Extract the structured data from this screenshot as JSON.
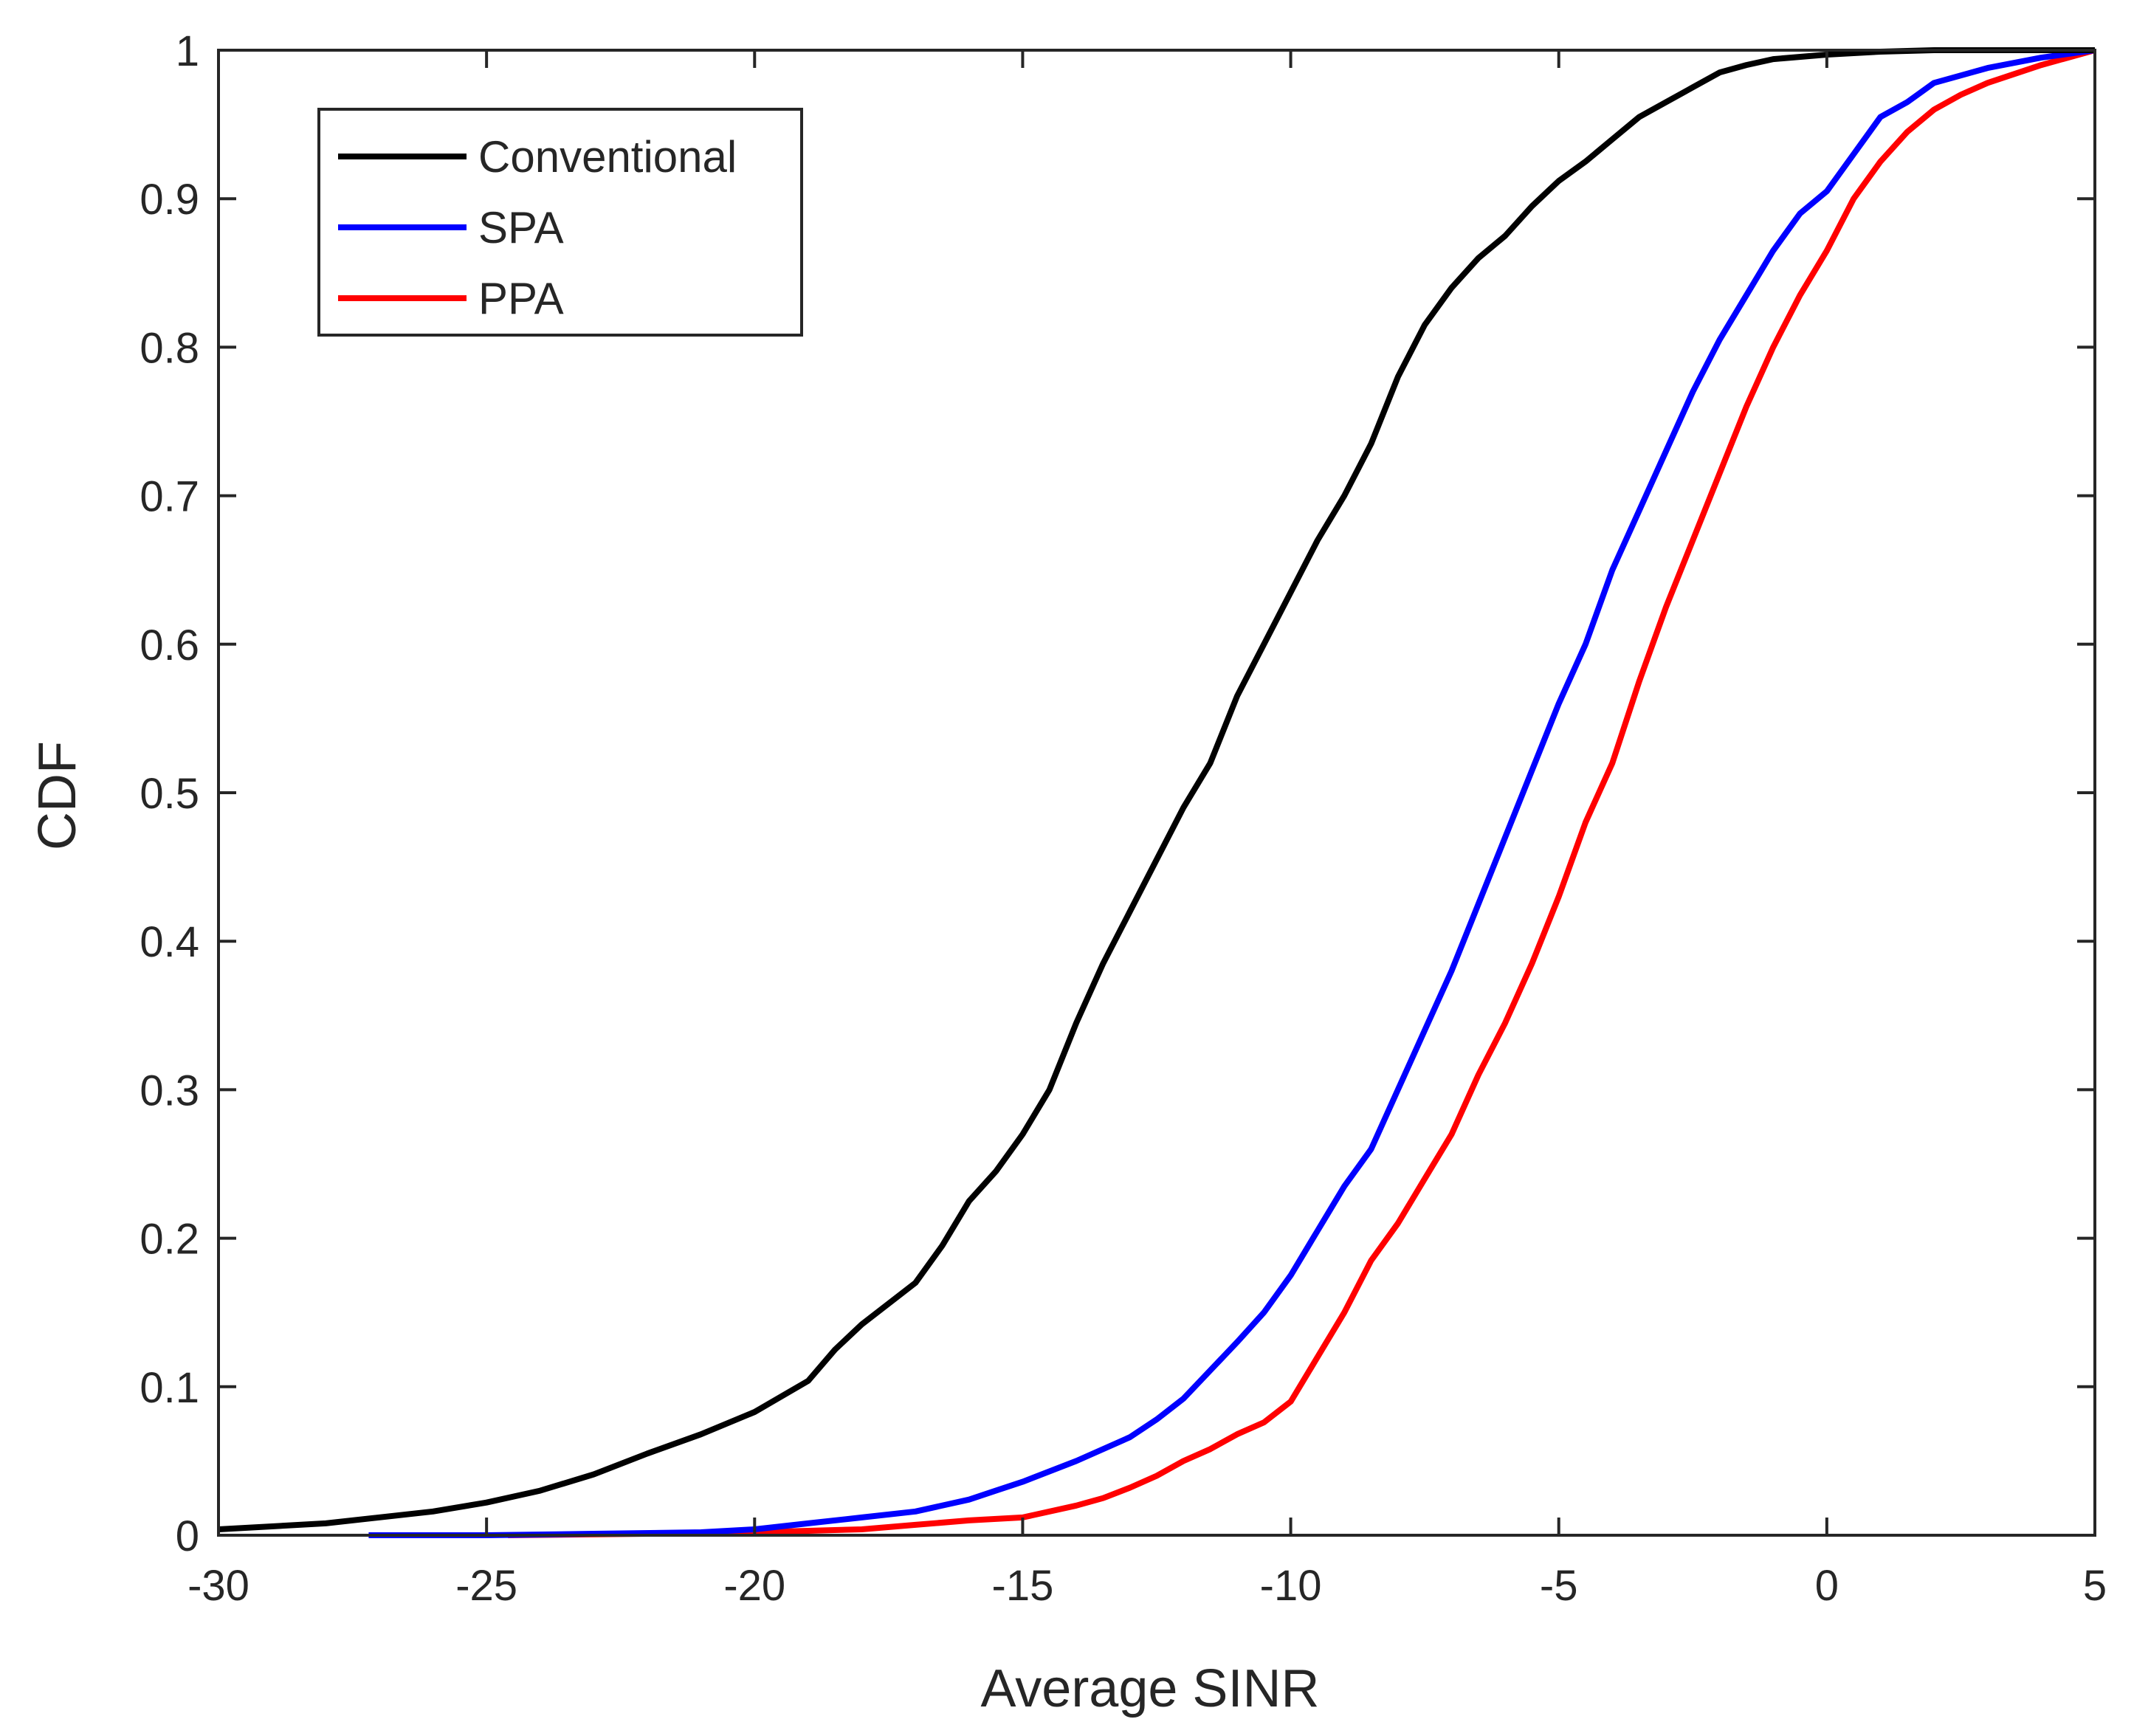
{
  "chart_data": {
    "type": "line",
    "title": "",
    "xlabel": "Average SINR",
    "ylabel": "CDF",
    "xlim": [
      -30,
      5
    ],
    "ylim": [
      0,
      1
    ],
    "xticks": [
      -30,
      -25,
      -20,
      -15,
      -10,
      -5,
      0,
      5
    ],
    "xtick_labels": [
      "-30",
      "-25",
      "-20",
      "-15",
      "-10",
      "-5",
      "0",
      "5"
    ],
    "yticks": [
      0,
      0.1,
      0.2,
      0.3,
      0.4,
      0.5,
      0.6,
      0.7,
      0.8,
      0.9,
      1
    ],
    "ytick_labels": [
      "0",
      "0.1",
      "0.2",
      "0.3",
      "0.4",
      "0.5",
      "0.6",
      "0.7",
      "0.8",
      "0.9",
      "1"
    ],
    "grid": false,
    "legend_position": "top-left",
    "series": [
      {
        "name": "Conventional",
        "color": "#000000",
        "x": [
          -30,
          -28,
          -26,
          -25,
          -24,
          -23,
          -22,
          -21,
          -20,
          -19,
          -18.5,
          -18,
          -17,
          -16.5,
          -16,
          -15.5,
          -15,
          -14.5,
          -14,
          -13.5,
          -13,
          -12.5,
          -12,
          -11.5,
          -11,
          -10.5,
          -10,
          -9.5,
          -9,
          -8.5,
          -8,
          -7.5,
          -7,
          -6.5,
          -6,
          -5.5,
          -5,
          -4.5,
          -4,
          -3.5,
          -3,
          -2.5,
          -2,
          -1.5,
          -1,
          0,
          1,
          2,
          3,
          4,
          5
        ],
        "y": [
          0.004,
          0.008,
          0.016,
          0.022,
          0.03,
          0.041,
          0.055,
          0.068,
          0.083,
          0.104,
          0.125,
          0.142,
          0.17,
          0.195,
          0.225,
          0.245,
          0.27,
          0.3,
          0.345,
          0.385,
          0.42,
          0.455,
          0.49,
          0.52,
          0.565,
          0.6,
          0.635,
          0.67,
          0.7,
          0.735,
          0.78,
          0.815,
          0.84,
          0.86,
          0.875,
          0.895,
          0.912,
          0.925,
          0.94,
          0.955,
          0.965,
          0.975,
          0.985,
          0.99,
          0.994,
          0.997,
          0.999,
          1.0,
          1.0,
          1.0,
          1.0
        ]
      },
      {
        "name": "SPA",
        "color": "#0000ff",
        "x": [
          -27.2,
          -25,
          -23,
          -21,
          -20,
          -19,
          -18,
          -17,
          -16,
          -15.5,
          -15,
          -14,
          -13,
          -12.5,
          -12,
          -11,
          -10.5,
          -10,
          -9.5,
          -9,
          -8.5,
          -8,
          -7.5,
          -7,
          -6.5,
          -6,
          -5.5,
          -5,
          -4.5,
          -4,
          -3.5,
          -3,
          -2.5,
          -2,
          -1.5,
          -1,
          -0.5,
          0,
          0.5,
          1,
          1.5,
          2,
          3,
          4,
          5
        ],
        "y": [
          0,
          0,
          0.001,
          0.002,
          0.004,
          0.008,
          0.012,
          0.016,
          0.024,
          0.03,
          0.036,
          0.05,
          0.066,
          0.078,
          0.092,
          0.13,
          0.15,
          0.175,
          0.205,
          0.235,
          0.26,
          0.3,
          0.34,
          0.38,
          0.425,
          0.47,
          0.515,
          0.56,
          0.6,
          0.65,
          0.69,
          0.73,
          0.77,
          0.805,
          0.835,
          0.865,
          0.89,
          0.905,
          0.93,
          0.955,
          0.965,
          0.978,
          0.988,
          0.995,
          1.0
        ]
      },
      {
        "name": "PPA",
        "color": "#ff0000",
        "x": [
          -24.6,
          -22,
          -20,
          -19,
          -18,
          -17,
          -16,
          -15,
          -14,
          -13.5,
          -13,
          -12.5,
          -12,
          -11.5,
          -11,
          -10.5,
          -10,
          -9.5,
          -9,
          -8.5,
          -8,
          -7.5,
          -7,
          -6.5,
          -6,
          -5.5,
          -5,
          -4.5,
          -4,
          -3.5,
          -3,
          -2.5,
          -2,
          -1.5,
          -1,
          -0.5,
          0,
          0.5,
          1,
          1.5,
          2,
          2.5,
          3,
          4,
          5
        ],
        "y": [
          0,
          0.001,
          0.002,
          0.003,
          0.004,
          0.007,
          0.01,
          0.012,
          0.02,
          0.025,
          0.032,
          0.04,
          0.05,
          0.058,
          0.068,
          0.076,
          0.09,
          0.12,
          0.15,
          0.185,
          0.21,
          0.24,
          0.27,
          0.31,
          0.345,
          0.385,
          0.43,
          0.48,
          0.52,
          0.575,
          0.625,
          0.67,
          0.715,
          0.76,
          0.8,
          0.835,
          0.865,
          0.9,
          0.925,
          0.945,
          0.96,
          0.97,
          0.978,
          0.99,
          1.0
        ]
      }
    ]
  }
}
